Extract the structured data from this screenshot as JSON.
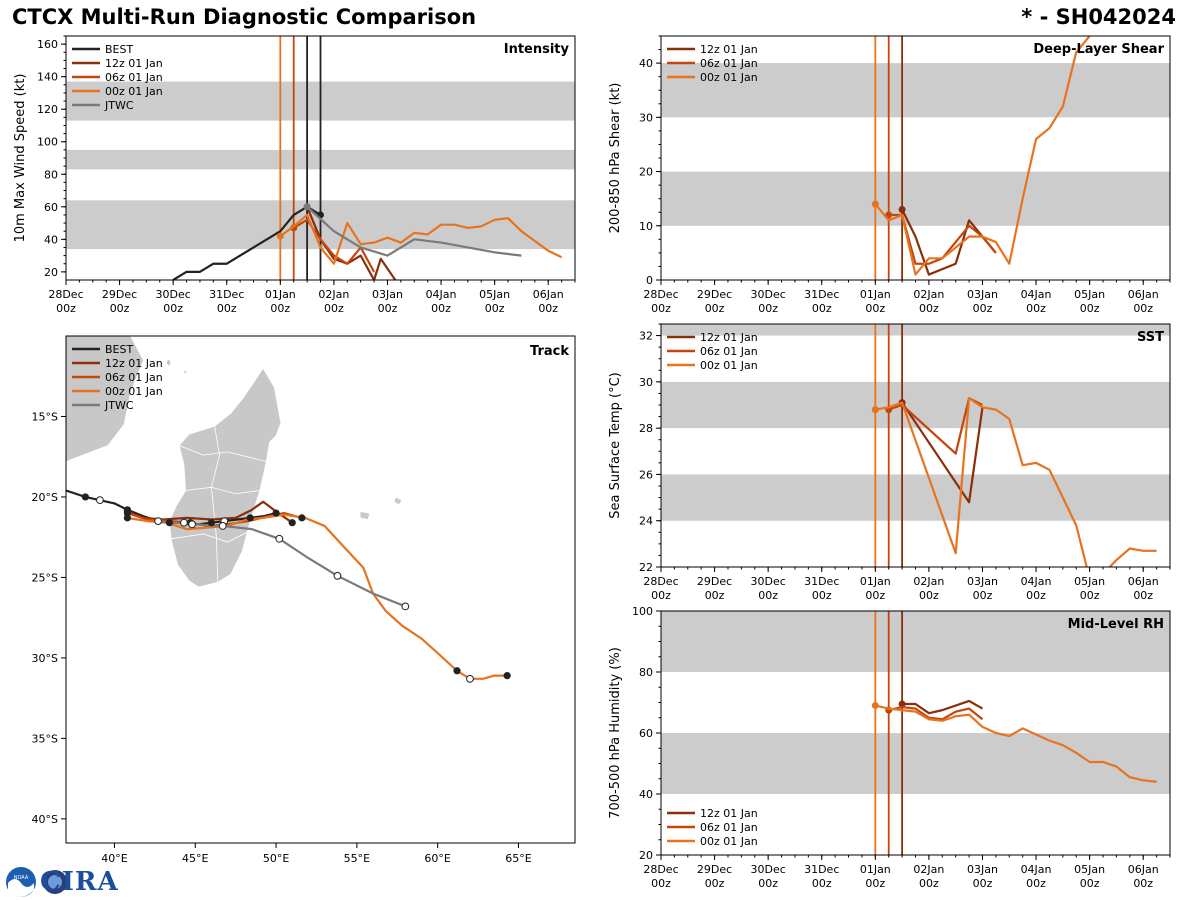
{
  "header": {
    "title": "CTCX Multi-Run Diagnostic Comparison",
    "storm": "* - SH042024"
  },
  "logos": {
    "noaa": "NOAA",
    "cira": "CIRA"
  },
  "colors": {
    "best": "#222222",
    "run12z": "#8b2e0a",
    "run06z": "#c4460d",
    "run00z": "#e8731e",
    "jtwc": "#7a7a7a",
    "band": "#cccccc",
    "land": "#c8c8c8"
  },
  "time_axis": {
    "min_hours": -96,
    "max_hours": 132,
    "tick_hours": [
      -96,
      -72,
      -48,
      -24,
      0,
      24,
      48,
      72,
      96,
      120
    ],
    "tick_labels": [
      "28Dec\n00z",
      "29Dec\n00z",
      "30Dec\n00z",
      "31Dec\n00z",
      "01Jan\n00z",
      "02Jan\n00z",
      "03Jan\n00z",
      "04Jan\n00z",
      "05Jan\n00z",
      "06Jan\n00z"
    ]
  },
  "chart_data": [
    {
      "id": "intensity",
      "type": "line",
      "title": "Intensity",
      "ylabel": "10m Max Wind Speed (kt)",
      "ylim": [
        15,
        165
      ],
      "yticks": [
        20,
        40,
        60,
        80,
        100,
        120,
        140,
        160
      ],
      "bands": [
        [
          34,
          64
        ],
        [
          83,
          95
        ],
        [
          113,
          137
        ]
      ],
      "legend": [
        "BEST",
        "12z 01 Jan",
        "06z 01 Jan",
        "00z 01 Jan",
        "JTWC"
      ],
      "vlines": [
        {
          "hours": 0,
          "series": "run00z"
        },
        {
          "hours": 6,
          "series": "run06z"
        },
        {
          "hours": 12,
          "series": "best"
        },
        {
          "hours": 18,
          "series": "best"
        }
      ],
      "series": [
        {
          "name": "BEST",
          "key": "best",
          "x": [
            -48,
            -42,
            -36,
            -30,
            -24,
            -18,
            -12,
            -6,
            0,
            6,
            12,
            18
          ],
          "y": [
            15,
            20,
            20,
            25,
            25,
            30,
            35,
            40,
            45,
            55,
            60,
            55
          ],
          "markers": [
            11,
            12
          ]
        },
        {
          "name": "12z 01 Jan",
          "key": "run12z",
          "x": [
            12,
            18,
            24,
            30,
            36,
            42,
            45,
            48,
            54
          ],
          "y": [
            60,
            40,
            28,
            25,
            30,
            15,
            28,
            22,
            10
          ],
          "markers": [
            0
          ]
        },
        {
          "name": "06z 01 Jan",
          "key": "run06z",
          "x": [
            6,
            12,
            18,
            24,
            30,
            36,
            42
          ],
          "y": [
            47,
            52,
            40,
            30,
            25,
            35,
            20
          ],
          "markers": [
            0
          ]
        },
        {
          "name": "00z 01 Jan",
          "key": "run00z",
          "x": [
            0,
            6,
            12,
            18,
            24,
            30,
            36,
            42,
            48,
            54,
            60,
            66,
            72,
            78,
            84,
            90,
            96,
            102,
            108,
            114,
            120,
            126
          ],
          "y": [
            42,
            48,
            55,
            35,
            25,
            50,
            37,
            38,
            41,
            38,
            44,
            43,
            49,
            49,
            47,
            48,
            52,
            53,
            45,
            39,
            33,
            29
          ],
          "markers": [
            0
          ]
        },
        {
          "name": "JTWC",
          "key": "jtwc",
          "x": [
            12,
            24,
            36,
            48,
            60,
            72,
            84,
            96,
            108
          ],
          "y": [
            60,
            45,
            35,
            30,
            40,
            38,
            35,
            32,
            30
          ],
          "markers": [
            0
          ]
        }
      ]
    },
    {
      "id": "shear",
      "type": "line",
      "title": "Deep-Layer Shear",
      "ylabel": "200-850 hPa Shear (kt)",
      "ylim": [
        0,
        45
      ],
      "yticks": [
        0,
        10,
        20,
        30,
        40
      ],
      "bands": [
        [
          10,
          20
        ],
        [
          30,
          40
        ]
      ],
      "legend": [
        "12z 01 Jan",
        "06z 01 Jan",
        "00z 01 Jan"
      ],
      "vlines": [
        {
          "hours": 0,
          "series": "run00z"
        },
        {
          "hours": 6,
          "series": "run06z"
        },
        {
          "hours": 12,
          "series": "run12z"
        }
      ],
      "series": [
        {
          "name": "12z 01 Jan",
          "key": "run12z",
          "x": [
            12,
            18,
            24,
            30,
            36,
            42,
            48,
            54
          ],
          "y": [
            13,
            8,
            1,
            2,
            3,
            11,
            8,
            5
          ],
          "markers": [
            0
          ]
        },
        {
          "name": "06z 01 Jan",
          "key": "run06z",
          "x": [
            6,
            12,
            18,
            24,
            30,
            36,
            42,
            48,
            54
          ],
          "y": [
            12,
            12,
            3,
            3,
            4,
            7,
            10,
            8,
            5
          ],
          "markers": [
            0
          ]
        },
        {
          "name": "00z 01 Jan",
          "key": "run00z",
          "x": [
            0,
            6,
            12,
            18,
            24,
            30,
            36,
            42,
            48,
            54,
            60,
            66,
            72,
            78,
            84,
            90,
            96,
            102
          ],
          "y": [
            14,
            11,
            12,
            1,
            4,
            4,
            6,
            8,
            8,
            7,
            3,
            15,
            26,
            28,
            32,
            42,
            45,
            48
          ],
          "markers": [
            0
          ]
        }
      ]
    },
    {
      "id": "sst",
      "type": "line",
      "title": "SST",
      "ylabel": "Sea Surface Temp (°C)",
      "ylim": [
        22,
        32.5
      ],
      "yticks": [
        22,
        24,
        26,
        28,
        30,
        32
      ],
      "bands": [
        [
          24,
          26
        ],
        [
          28,
          30
        ],
        [
          32,
          33
        ]
      ],
      "legend": [
        "12z 01 Jan",
        "06z 01 Jan",
        "00z 01 Jan"
      ],
      "vlines": [
        {
          "hours": 0,
          "series": "run00z"
        },
        {
          "hours": 6,
          "series": "run06z"
        },
        {
          "hours": 12,
          "series": "run12z"
        }
      ],
      "series": [
        {
          "name": "12z 01 Jan",
          "key": "run12z",
          "x": [
            12,
            42,
            48
          ],
          "y": [
            29.1,
            24.8,
            28.9
          ],
          "markers": [
            0
          ]
        },
        {
          "name": "06z 01 Jan",
          "key": "run06z",
          "x": [
            6,
            12,
            36,
            42,
            48
          ],
          "y": [
            28.8,
            29.0,
            26.9,
            29.3,
            29.0
          ],
          "markers": [
            0
          ]
        },
        {
          "name": "00z 01 Jan",
          "key": "run00z",
          "x": [
            0,
            6,
            12,
            36,
            42,
            48,
            54,
            60,
            66,
            72,
            78,
            84,
            90,
            96,
            102,
            108,
            114,
            120,
            126
          ],
          "y": [
            28.8,
            28.9,
            29.1,
            22.6,
            29.3,
            28.9,
            28.8,
            28.4,
            26.4,
            26.5,
            26.2,
            25.0,
            23.8,
            21.5,
            21.7,
            22.3,
            22.8,
            22.7,
            22.7
          ],
          "markers": [
            0
          ]
        }
      ]
    },
    {
      "id": "rh",
      "type": "line",
      "title": "Mid-Level RH",
      "ylabel": "700-500 hPa Humidity (%)",
      "ylim": [
        20,
        100
      ],
      "yticks": [
        20,
        40,
        60,
        80,
        100
      ],
      "bands": [
        [
          40,
          60
        ],
        [
          80,
          100
        ]
      ],
      "legend": [
        "12z 01 Jan",
        "06z 01 Jan",
        "00z 01 Jan"
      ],
      "vlines": [
        {
          "hours": 0,
          "series": "run00z"
        },
        {
          "hours": 6,
          "series": "run06z"
        },
        {
          "hours": 12,
          "series": "run12z"
        }
      ],
      "series": [
        {
          "name": "12z 01 Jan",
          "key": "run12z",
          "x": [
            12,
            18,
            24,
            30,
            36,
            42,
            48
          ],
          "y": [
            69.5,
            69.5,
            66.5,
            67.5,
            69,
            70.5,
            68
          ],
          "markers": [
            0
          ]
        },
        {
          "name": "06z 01 Jan",
          "key": "run06z",
          "x": [
            6,
            12,
            18,
            24,
            30,
            36,
            42,
            48
          ],
          "y": [
            67.5,
            68.5,
            68,
            65,
            64.5,
            67,
            68,
            64.5
          ],
          "markers": [
            0
          ]
        },
        {
          "name": "00z 01 Jan",
          "key": "run00z",
          "x": [
            0,
            6,
            12,
            18,
            24,
            30,
            36,
            42,
            48,
            54,
            60,
            66,
            72,
            78,
            84,
            90,
            96,
            102,
            108,
            114,
            120,
            126
          ],
          "y": [
            69,
            68,
            67.5,
            67,
            64.5,
            64,
            65.5,
            66,
            62,
            60,
            59,
            61.5,
            59.5,
            57.5,
            56,
            53.5,
            50.5,
            50.5,
            49,
            45.5,
            44.5,
            44
          ],
          "markers": [
            0
          ]
        }
      ]
    },
    {
      "id": "track",
      "type": "scatter",
      "title": "Track",
      "xlim": [
        37,
        68.5
      ],
      "ylim": [
        -41.5,
        -10
      ],
      "xticks": [
        40,
        45,
        50,
        55,
        60,
        65
      ],
      "xtick_labels": [
        "40°E",
        "45°E",
        "50°E",
        "55°E",
        "60°E",
        "65°E"
      ],
      "yticks": [
        -15,
        -20,
        -25,
        -30,
        -35,
        -40
      ],
      "ytick_labels": [
        "15°S",
        "20°S",
        "25°S",
        "30°S",
        "35°S",
        "40°S"
      ],
      "legend": [
        "BEST",
        "12z 01 Jan",
        "06z 01 Jan",
        "00z 01 Jan",
        "JTWC"
      ],
      "series": [
        {
          "name": "BEST",
          "key": "best",
          "lon": [
            37,
            38.2,
            39.1,
            40.0,
            40.8,
            41.8,
            42.7,
            43.4,
            44.3,
            45.2,
            46.0,
            46.8,
            47.6,
            48.4,
            49.2,
            50.0
          ],
          "lat": [
            -19.6,
            -20.0,
            -20.2,
            -20.4,
            -20.8,
            -21.2,
            -21.5,
            -21.6,
            -21.6,
            -21.7,
            -21.6,
            -21.5,
            -21.4,
            -21.3,
            -21.2,
            -21.0
          ],
          "filled": [
            1,
            4,
            7,
            10,
            13,
            15
          ],
          "hollow": [
            2,
            8,
            11
          ]
        },
        {
          "name": "12z 01 Jan",
          "key": "run12z",
          "lon": [
            40.8,
            41.8,
            43.0,
            44.5,
            46.0,
            47.5,
            48.5,
            49.2,
            50.0,
            51.0
          ],
          "lat": [
            -20.9,
            -21.3,
            -21.4,
            -21.3,
            -21.4,
            -21.3,
            -20.8,
            -20.3,
            -20.9,
            -21.6
          ],
          "filled": [
            0,
            9
          ],
          "hollow": []
        },
        {
          "name": "06z 01 Jan",
          "key": "run06z",
          "lon": [
            40.8,
            42.0,
            43.5,
            44.7,
            45.8,
            47.0,
            48.3,
            49.5,
            50.5,
            51.6
          ],
          "lat": [
            -21.0,
            -21.4,
            -21.5,
            -21.6,
            -21.8,
            -21.7,
            -21.5,
            -21.2,
            -21.0,
            -21.3
          ],
          "filled": [
            0,
            3,
            9
          ],
          "hollow": []
        },
        {
          "name": "00z 01 Jan",
          "key": "run00z",
          "lon": [
            40.8,
            42.0,
            43.2,
            44.5,
            45.8,
            47.0,
            48.2,
            49.2,
            50.5,
            51.8,
            53.0,
            54.2,
            55.4,
            56.0,
            56.8,
            57.8,
            59.0,
            60.0,
            61.2,
            62.0,
            62.8,
            63.5,
            64.3
          ],
          "lat": [
            -21.3,
            -21.5,
            -21.6,
            -22.0,
            -21.9,
            -21.8,
            -21.4,
            -21.3,
            -21.1,
            -21.3,
            -21.8,
            -23.1,
            -24.4,
            -26.0,
            -27.1,
            -28.0,
            -28.8,
            -29.7,
            -30.8,
            -31.3,
            -31.3,
            -31.1,
            -31.1
          ],
          "filled": [
            0,
            18,
            22
          ],
          "hollow": [
            19
          ]
        },
        {
          "name": "JTWC",
          "key": "jtwc",
          "lon": [
            42.7,
            44.8,
            46.7,
            48.5,
            50.2,
            52.0,
            53.8,
            56.0,
            58.0
          ],
          "lat": [
            -21.5,
            -21.7,
            -21.8,
            -22.0,
            -22.6,
            -23.8,
            -24.9,
            -26.0,
            -26.8
          ],
          "filled": [],
          "hollow": [
            0,
            1,
            2,
            4,
            6,
            8
          ]
        }
      ]
    }
  ]
}
